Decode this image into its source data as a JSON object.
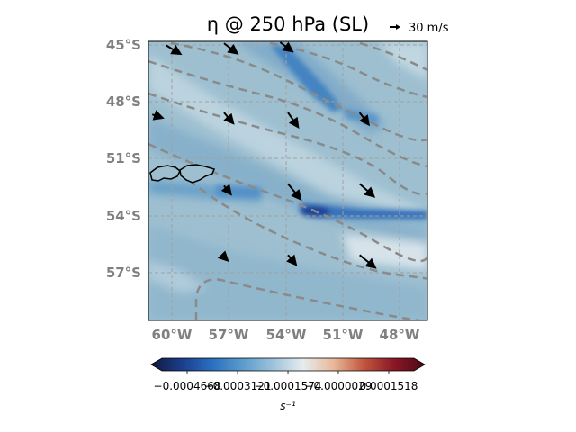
{
  "chart_data": {
    "type": "heatmap",
    "title": "η @ 250 hPa (SL)",
    "quiver_key_label": "30 m/s",
    "lat_ticks": [
      "45°S",
      "48°S",
      "51°S",
      "54°S",
      "57°S"
    ],
    "lon_ticks": [
      "60°W",
      "57°W",
      "54°W",
      "51°W",
      "48°W"
    ],
    "extent": {
      "lon": [
        -61.2,
        -46.8
      ],
      "lat": [
        -59.4,
        -44.9
      ]
    },
    "colorbar": {
      "label": "s⁻¹",
      "tick_labels": [
        "−0.0004668",
        "−0.0003121",
        "−0.0001574",
        "−0.0000029",
        "0.0001518"
      ],
      "tick_values": [
        -0.0004668,
        -0.0003121,
        -0.0001574,
        -2.9e-06,
        0.0001518
      ],
      "range": [
        -0.0005442,
        0.0002292
      ],
      "colors": [
        "#12183d",
        "#1b3d8c",
        "#2a6fbf",
        "#5a9ccc",
        "#9dc2dc",
        "#e6ecee",
        "#e8b89a",
        "#c0563c",
        "#8a1626",
        "#4a0a14"
      ]
    },
    "grid": true,
    "contours_style": "dashed gray",
    "vectors": [
      {
        "lon": -60.3,
        "lat": -45.1,
        "u": 10,
        "v": -6
      },
      {
        "lon": -57.3,
        "lat": -45.0,
        "u": 9,
        "v": -7
      },
      {
        "lon": -54.4,
        "lat": -44.95,
        "u": 8,
        "v": -6
      },
      {
        "lon": -61.0,
        "lat": -48.7,
        "u": 6,
        "v": -2
      },
      {
        "lon": -57.3,
        "lat": -48.6,
        "u": 6,
        "v": -7
      },
      {
        "lon": -54.0,
        "lat": -48.6,
        "u": 7,
        "v": -10
      },
      {
        "lon": -50.3,
        "lat": -48.6,
        "u": 6,
        "v": -8
      },
      {
        "lon": -57.3,
        "lat": -52.4,
        "u": 4,
        "v": -5
      },
      {
        "lon": -54.0,
        "lat": -52.3,
        "u": 9,
        "v": -11
      },
      {
        "lon": -50.3,
        "lat": -52.3,
        "u": 10,
        "v": -9
      },
      {
        "lon": -57.3,
        "lat": -56.1,
        "u": 1,
        "v": -1
      },
      {
        "lon": -54.0,
        "lat": -56.0,
        "u": 5,
        "v": -6
      },
      {
        "lon": -50.3,
        "lat": -56.0,
        "u": 11,
        "v": -9
      }
    ]
  }
}
